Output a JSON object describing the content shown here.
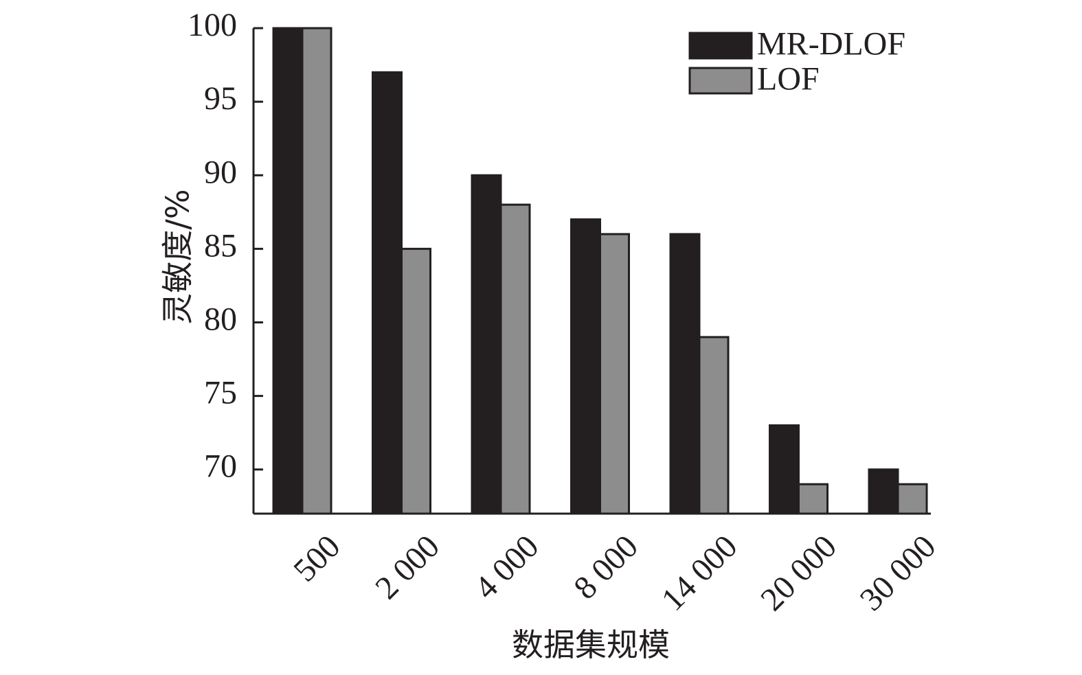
{
  "chart_data": {
    "type": "bar",
    "title": "",
    "xlabel": "数据集规模",
    "ylabel": "灵敏度/%",
    "categories": [
      "500",
      "2 000",
      "4 000",
      "8 000",
      "14 000",
      "20 000",
      "30 000"
    ],
    "series": [
      {
        "name": "MR-DLOF",
        "values": [
          100,
          97,
          90,
          87,
          86,
          73,
          70
        ],
        "color": "#231f20"
      },
      {
        "name": "LOF",
        "values": [
          100,
          85,
          88,
          86,
          79,
          69,
          69
        ],
        "color": "#8e8d8d"
      }
    ],
    "ylim": [
      67,
      100
    ],
    "yticks": [
      "70",
      "75",
      "80",
      "85",
      "90",
      "95",
      "100"
    ],
    "legend": "top-right",
    "grid": false
  }
}
